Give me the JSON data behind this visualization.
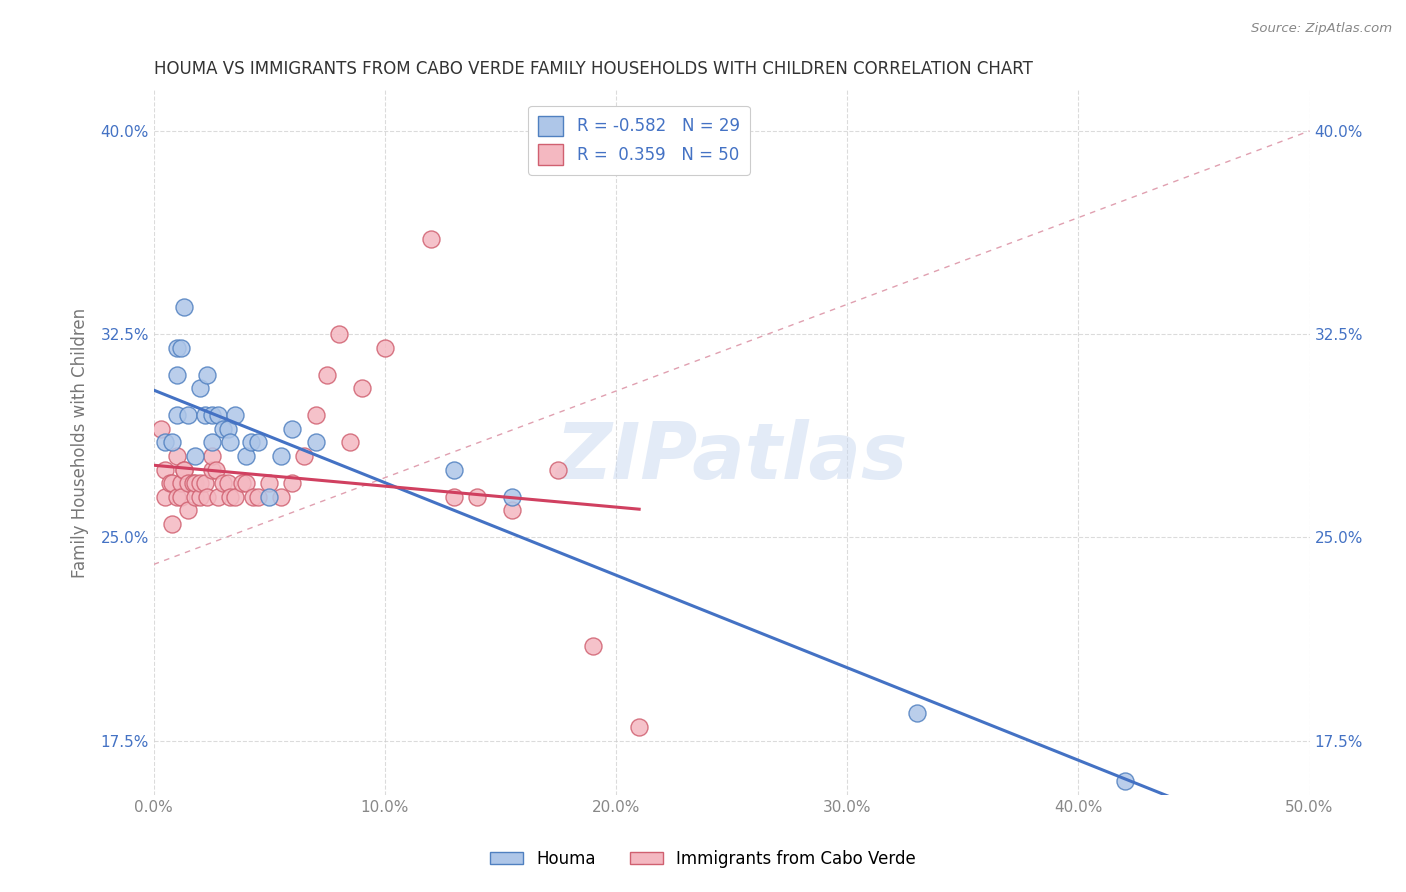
{
  "title": "HOUMA VS IMMIGRANTS FROM CABO VERDE FAMILY HOUSEHOLDS WITH CHILDREN CORRELATION CHART",
  "source": "Source: ZipAtlas.com",
  "ylabel": "Family Households with Children",
  "xlim": [
    0.0,
    0.5
  ],
  "ylim": [
    0.155,
    0.415
  ],
  "yticks": [
    0.175,
    0.25,
    0.325,
    0.4
  ],
  "ytick_labels": [
    "17.5%",
    "25.0%",
    "32.5%",
    "40.0%"
  ],
  "xticks": [
    0.0,
    0.1,
    0.2,
    0.3,
    0.4,
    0.5
  ],
  "xtick_labels": [
    "0.0%",
    "10.0%",
    "20.0%",
    "30.0%",
    "40.0%",
    "50.0%"
  ],
  "houma_x": [
    0.005,
    0.008,
    0.01,
    0.01,
    0.01,
    0.012,
    0.013,
    0.015,
    0.018,
    0.02,
    0.022,
    0.023,
    0.025,
    0.025,
    0.028,
    0.03,
    0.032,
    0.033,
    0.035,
    0.04,
    0.042,
    0.045,
    0.05,
    0.055,
    0.06,
    0.07,
    0.13,
    0.155,
    0.33,
    0.42
  ],
  "houma_y": [
    0.285,
    0.285,
    0.31,
    0.32,
    0.295,
    0.32,
    0.335,
    0.295,
    0.28,
    0.305,
    0.295,
    0.31,
    0.285,
    0.295,
    0.295,
    0.29,
    0.29,
    0.285,
    0.295,
    0.28,
    0.285,
    0.285,
    0.265,
    0.28,
    0.29,
    0.285,
    0.275,
    0.265,
    0.185,
    0.16
  ],
  "cabo_x": [
    0.003,
    0.005,
    0.005,
    0.007,
    0.008,
    0.008,
    0.01,
    0.01,
    0.012,
    0.012,
    0.013,
    0.013,
    0.015,
    0.015,
    0.017,
    0.018,
    0.018,
    0.02,
    0.02,
    0.022,
    0.023,
    0.025,
    0.025,
    0.027,
    0.028,
    0.03,
    0.032,
    0.033,
    0.035,
    0.038,
    0.04,
    0.043,
    0.045,
    0.05,
    0.055,
    0.06,
    0.065,
    0.07,
    0.075,
    0.08,
    0.085,
    0.09,
    0.1,
    0.12,
    0.13,
    0.14,
    0.155,
    0.175,
    0.19,
    0.21
  ],
  "cabo_y": [
    0.29,
    0.275,
    0.265,
    0.27,
    0.27,
    0.255,
    0.265,
    0.28,
    0.27,
    0.265,
    0.275,
    0.275,
    0.27,
    0.26,
    0.27,
    0.265,
    0.27,
    0.265,
    0.27,
    0.27,
    0.265,
    0.275,
    0.28,
    0.275,
    0.265,
    0.27,
    0.27,
    0.265,
    0.265,
    0.27,
    0.27,
    0.265,
    0.265,
    0.27,
    0.265,
    0.27,
    0.28,
    0.295,
    0.31,
    0.325,
    0.285,
    0.305,
    0.32,
    0.36,
    0.265,
    0.265,
    0.26,
    0.275,
    0.21,
    0.18
  ],
  "houma_color": "#aec6e8",
  "cabo_color": "#f4b8c1",
  "houma_edge_color": "#5080c0",
  "cabo_edge_color": "#d06070",
  "houma_line_color": "#4472c4",
  "cabo_line_color": "#d04060",
  "ref_line_color": "#cccccc",
  "background_color": "#ffffff",
  "grid_color": "#cccccc",
  "title_color": "#333333",
  "tick_color_y": "#4472c4",
  "tick_color_x": "#888888",
  "legend_r_color": "#4472c4",
  "legend_n_color": "#4472c4",
  "watermark_color": "#c8d8f0",
  "source_color": "#888888"
}
